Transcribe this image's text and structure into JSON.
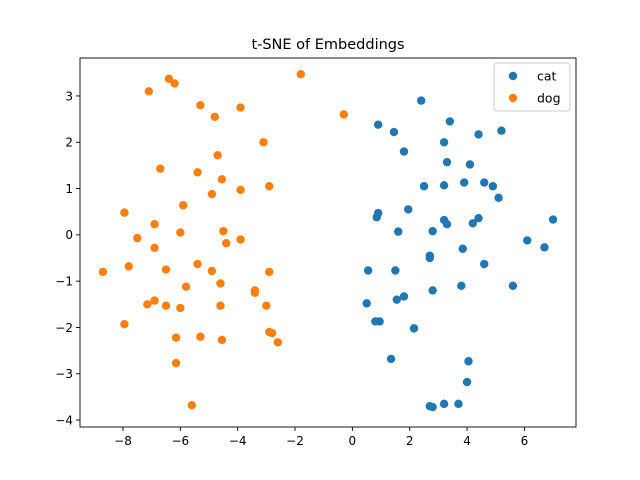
{
  "chart_data": {
    "type": "scatter",
    "title": "t-SNE of Embeddings",
    "xlabel": "",
    "ylabel": "",
    "xlim": [
      -9.5,
      7.8
    ],
    "ylim": [
      -4.15,
      3.82
    ],
    "xticks": [
      -8,
      -6,
      -4,
      -2,
      0,
      2,
      4,
      6
    ],
    "yticks": [
      -4,
      -3,
      -2,
      -1,
      0,
      1,
      2,
      3
    ],
    "grid": false,
    "legend": "top-right",
    "series": [
      {
        "name": "cat",
        "color": "#1f77b4",
        "points": [
          [
            2.4,
            2.9
          ],
          [
            3.4,
            2.45
          ],
          [
            5.2,
            2.25
          ],
          [
            0.9,
            2.38
          ],
          [
            1.45,
            2.22
          ],
          [
            4.4,
            2.17
          ],
          [
            3.2,
            2.0
          ],
          [
            1.8,
            1.8
          ],
          [
            3.3,
            1.57
          ],
          [
            4.1,
            1.52
          ],
          [
            2.5,
            1.05
          ],
          [
            3.2,
            1.07
          ],
          [
            3.9,
            1.13
          ],
          [
            4.6,
            1.13
          ],
          [
            4.9,
            1.05
          ],
          [
            5.1,
            0.8
          ],
          [
            1.95,
            0.55
          ],
          [
            0.9,
            0.47
          ],
          [
            0.85,
            0.38
          ],
          [
            3.2,
            0.32
          ],
          [
            3.3,
            0.23
          ],
          [
            4.4,
            0.36
          ],
          [
            4.2,
            0.25
          ],
          [
            1.6,
            0.07
          ],
          [
            2.8,
            0.08
          ],
          [
            7.0,
            0.33
          ],
          [
            6.1,
            -0.12
          ],
          [
            6.7,
            -0.27
          ],
          [
            3.85,
            -0.3
          ],
          [
            2.7,
            -0.45
          ],
          [
            2.7,
            -0.5
          ],
          [
            4.6,
            -0.63
          ],
          [
            0.55,
            -0.77
          ],
          [
            1.5,
            -0.77
          ],
          [
            3.8,
            -1.1
          ],
          [
            5.6,
            -1.1
          ],
          [
            2.8,
            -1.2
          ],
          [
            1.8,
            -1.33
          ],
          [
            1.55,
            -1.4
          ],
          [
            0.5,
            -1.48
          ],
          [
            0.8,
            -1.87
          ],
          [
            0.95,
            -1.87
          ],
          [
            2.15,
            -2.02
          ],
          [
            1.35,
            -2.68
          ],
          [
            4.05,
            -2.73
          ],
          [
            4.0,
            -3.18
          ],
          [
            3.2,
            -3.65
          ],
          [
            3.7,
            -3.65
          ],
          [
            2.7,
            -3.7
          ],
          [
            2.8,
            -3.72
          ]
        ]
      },
      {
        "name": "dog",
        "color": "#ff7f0e",
        "points": [
          [
            -1.8,
            3.47
          ],
          [
            -6.4,
            3.37
          ],
          [
            -6.2,
            3.27
          ],
          [
            -7.1,
            3.1
          ],
          [
            -5.3,
            2.8
          ],
          [
            -3.9,
            2.75
          ],
          [
            -0.3,
            2.6
          ],
          [
            -4.8,
            2.55
          ],
          [
            -3.1,
            2.0
          ],
          [
            -4.7,
            1.72
          ],
          [
            -6.7,
            1.43
          ],
          [
            -5.4,
            1.35
          ],
          [
            -4.55,
            1.2
          ],
          [
            -2.9,
            1.05
          ],
          [
            -3.9,
            0.97
          ],
          [
            -4.9,
            0.88
          ],
          [
            -5.9,
            0.64
          ],
          [
            -7.95,
            0.48
          ],
          [
            -6.9,
            0.23
          ],
          [
            -4.5,
            0.08
          ],
          [
            -6.0,
            0.05
          ],
          [
            -7.5,
            -0.07
          ],
          [
            -3.9,
            -0.1
          ],
          [
            -4.4,
            -0.18
          ],
          [
            -6.9,
            -0.28
          ],
          [
            -5.4,
            -0.63
          ],
          [
            -7.8,
            -0.68
          ],
          [
            -6.5,
            -0.75
          ],
          [
            -8.7,
            -0.8
          ],
          [
            -4.9,
            -0.78
          ],
          [
            -2.9,
            -0.8
          ],
          [
            -4.6,
            -1.05
          ],
          [
            -5.8,
            -1.12
          ],
          [
            -3.4,
            -1.2
          ],
          [
            -3.4,
            -1.25
          ],
          [
            -6.9,
            -1.42
          ],
          [
            -7.15,
            -1.5
          ],
          [
            -6.5,
            -1.53
          ],
          [
            -4.6,
            -1.53
          ],
          [
            -3.0,
            -1.53
          ],
          [
            -6.0,
            -1.58
          ],
          [
            -7.95,
            -1.93
          ],
          [
            -2.9,
            -2.1
          ],
          [
            -2.8,
            -2.12
          ],
          [
            -5.3,
            -2.2
          ],
          [
            -6.15,
            -2.22
          ],
          [
            -4.55,
            -2.27
          ],
          [
            -2.6,
            -2.32
          ],
          [
            -6.15,
            -2.77
          ],
          [
            -5.6,
            -3.68
          ]
        ]
      }
    ]
  }
}
